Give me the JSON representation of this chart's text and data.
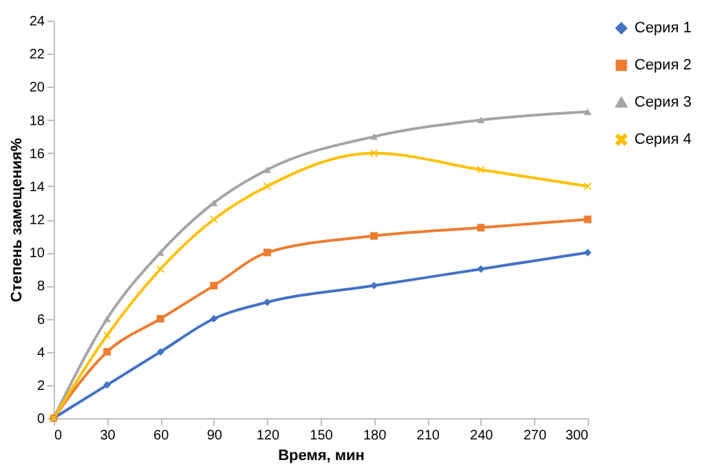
{
  "chart_data": {
    "type": "line",
    "xlabel": "Время, мин",
    "ylabel": "Степень замещения%",
    "x": [
      0,
      30,
      60,
      90,
      120,
      180,
      240,
      300
    ],
    "series": [
      {
        "name": "Серия 1",
        "color": "#4472c4",
        "marker": "diamond",
        "values": [
          0,
          2,
          4,
          6,
          7,
          8,
          9,
          10
        ]
      },
      {
        "name": "Серия 2",
        "color": "#ed7d31",
        "marker": "square",
        "values": [
          0,
          4,
          6,
          8,
          10,
          11,
          11.5,
          12
        ]
      },
      {
        "name": "Серия 3",
        "color": "#a5a5a5",
        "marker": "triangle",
        "values": [
          0,
          6,
          10,
          13,
          15,
          17,
          18,
          18.5
        ]
      },
      {
        "name": "Серия 4",
        "color": "#ffc000",
        "marker": "cross",
        "values": [
          0,
          5,
          9,
          12,
          14,
          16,
          15,
          14
        ]
      }
    ],
    "xlim": [
      0,
      300
    ],
    "xticks": [
      0,
      30,
      60,
      90,
      120,
      150,
      180,
      210,
      240,
      270,
      300
    ],
    "ylim": [
      0,
      24
    ],
    "yticks": [
      0,
      2,
      4,
      6,
      8,
      10,
      12,
      14,
      16,
      18,
      20,
      22,
      24
    ],
    "grid": false,
    "legend": "right"
  }
}
